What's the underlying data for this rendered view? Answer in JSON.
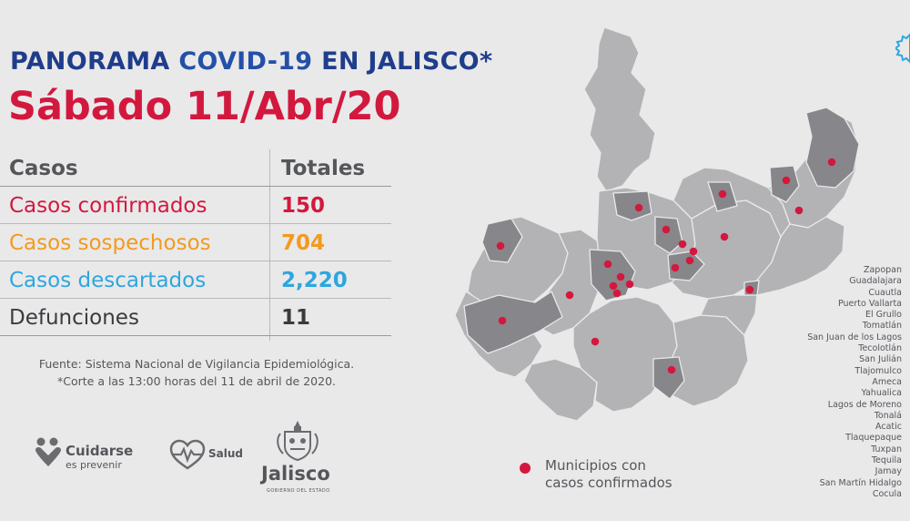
{
  "header": {
    "title_part1": "PANORAMA ",
    "title_part2": "COVID-19 ",
    "title_part3": "EN JALISCO*",
    "date_line": "Sábado 11/Abr/20"
  },
  "table": {
    "col_casos": "Casos",
    "col_totales": "Totales",
    "rows": [
      {
        "label": "Casos confirmados",
        "value": "150"
      },
      {
        "label": "Casos sospechosos",
        "value": "704"
      },
      {
        "label": "Casos descartados",
        "value": "2,220"
      },
      {
        "label": "Defunciones",
        "value": "11"
      }
    ]
  },
  "source": {
    "line1": "Fuente: Sistema Nacional de Vigilancia Epidemiológica.",
    "line2": "*Corte a las 13:00 horas del 11 de abril de 2020."
  },
  "logos": {
    "cuidarse_main": "Cuidarse",
    "cuidarse_sub": "es prevenir",
    "salud": "Salud",
    "jalisco": "Jalisco",
    "jalisco_sub": "GOBIERNO DEL ESTADO"
  },
  "legend": {
    "line1": "Municipios con",
    "line2": "casos confirmados"
  },
  "municipalities": [
    "Zapopan",
    "Guadalajara",
    "Cuautla",
    "Puerto Vallarta",
    "El Grullo",
    "Tomatlán",
    "San Juan de los Lagos",
    "Tecolotlán",
    "San Julián",
    "Tlajomulco",
    "Ameca",
    "Yahualica",
    "Lagos de Moreno",
    "Tonalá",
    "Acatic",
    "Tlaquepaque",
    "Tuxpan",
    "Tequila",
    "Jamay",
    "San Martín Hidalgo",
    "Cocula"
  ],
  "colors": {
    "title_blue": "#1f3d8a",
    "date_red": "#d3183e",
    "confirmed": "#d3183e",
    "suspected": "#f39a1e",
    "discarded": "#2ea6df",
    "deaths": "#3a3b3e",
    "map_light": "#b3b3b6",
    "map_dark": "#87878b",
    "background": "#e9e9ea"
  },
  "icons": [
    "heart-people-icon",
    "heartbeat-icon",
    "coat-of-arms-icon",
    "badge-icon",
    "red-dot-icon"
  ]
}
